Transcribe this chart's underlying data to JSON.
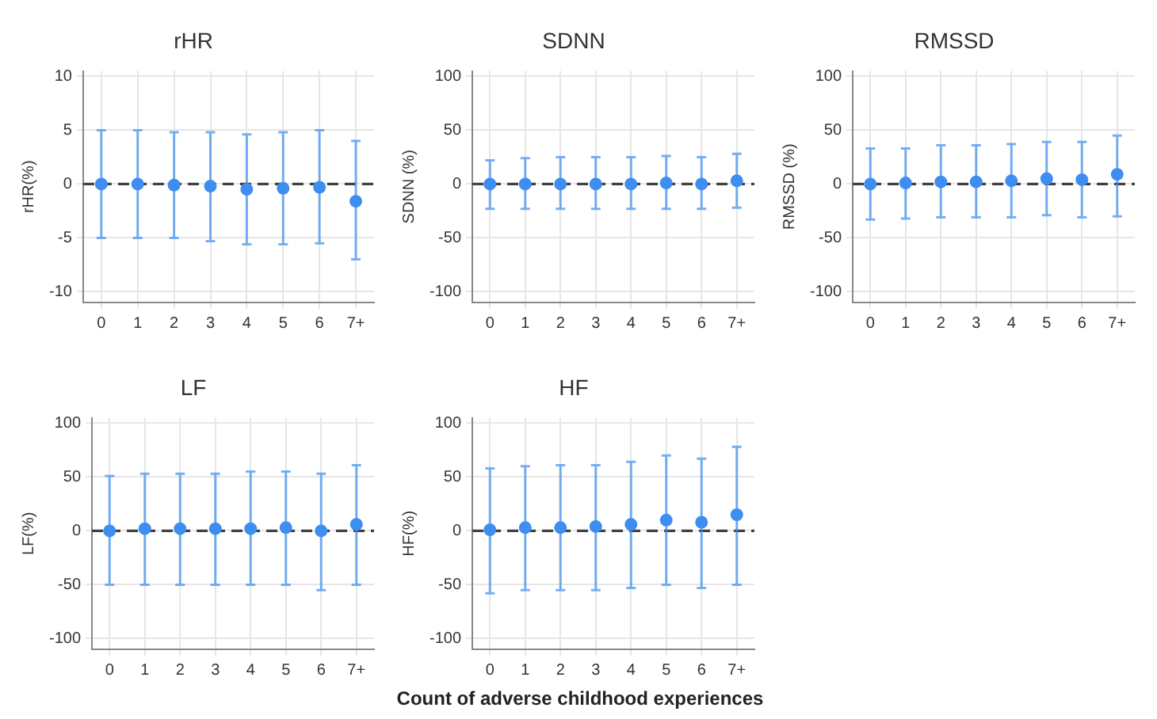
{
  "chart_data": [
    {
      "type": "scatter",
      "title": "rHR",
      "ylabel": "rHR(%)",
      "categories": [
        "0",
        "1",
        "2",
        "3",
        "4",
        "5",
        "6",
        "7+"
      ],
      "series": [
        {
          "color": "#3d8ef0",
          "values": [
            0,
            0,
            -0.1,
            -0.2,
            -0.5,
            -0.4,
            -0.3,
            -1.6
          ],
          "errors": [
            [
              -5,
              5
            ],
            [
              -5,
              5
            ],
            [
              -5,
              4.8
            ],
            [
              -5.3,
              4.8
            ],
            [
              -5.6,
              4.6
            ],
            [
              -5.6,
              4.8
            ],
            [
              -5.5,
              5
            ],
            [
              -7,
              4
            ]
          ]
        }
      ],
      "ylim": [
        -11,
        10.5
      ],
      "yticks": [
        -10,
        -5,
        0,
        5,
        10
      ],
      "grid": true,
      "marker": "circle",
      "ref_lines": [
        {
          "axis": "y",
          "value": 0,
          "color": "#404040",
          "line_style": "dashed"
        }
      ]
    },
    {
      "type": "scatter",
      "title": "SDNN",
      "ylabel": "SDNN (%)",
      "categories": [
        "0",
        "1",
        "2",
        "3",
        "4",
        "5",
        "6",
        "7+"
      ],
      "series": [
        {
          "color": "#3d8ef0",
          "values": [
            0,
            0,
            0,
            0,
            0,
            1,
            0,
            3
          ],
          "errors": [
            [
              -23,
              22
            ],
            [
              -23,
              24
            ],
            [
              -23,
              25
            ],
            [
              -23,
              25
            ],
            [
              -23,
              25
            ],
            [
              -23,
              26
            ],
            [
              -23,
              25
            ],
            [
              -22,
              28
            ]
          ]
        }
      ],
      "ylim": [
        -110,
        105
      ],
      "yticks": [
        -100,
        -50,
        0,
        50,
        100
      ],
      "grid": true,
      "marker": "circle",
      "ref_lines": [
        {
          "axis": "y",
          "value": 0,
          "color": "#404040",
          "line_style": "dashed"
        }
      ]
    },
    {
      "type": "scatter",
      "title": "RMSSD",
      "ylabel": "RMSSD (%)",
      "categories": [
        "0",
        "1",
        "2",
        "3",
        "4",
        "5",
        "6",
        "7+"
      ],
      "series": [
        {
          "color": "#3d8ef0",
          "values": [
            0,
            1,
            2,
            2,
            3,
            5,
            4,
            9
          ],
          "errors": [
            [
              -33,
              33
            ],
            [
              -32,
              33
            ],
            [
              -31,
              36
            ],
            [
              -31,
              36
            ],
            [
              -31,
              37
            ],
            [
              -29,
              39
            ],
            [
              -31,
              39
            ],
            [
              -30,
              45
            ]
          ]
        }
      ],
      "ylim": [
        -110,
        105
      ],
      "yticks": [
        -100,
        -50,
        0,
        50,
        100
      ],
      "grid": true,
      "marker": "circle",
      "ref_lines": [
        {
          "axis": "y",
          "value": 0,
          "color": "#404040",
          "line_style": "dashed"
        }
      ]
    },
    {
      "type": "scatter",
      "title": "LF",
      "ylabel": "LF(%)",
      "categories": [
        "0",
        "1",
        "2",
        "3",
        "4",
        "5",
        "6",
        "7+"
      ],
      "series": [
        {
          "color": "#3d8ef0",
          "values": [
            0,
            2,
            2,
            2,
            2,
            3,
            0,
            6
          ],
          "errors": [
            [
              -50,
              51
            ],
            [
              -50,
              53
            ],
            [
              -50,
              53
            ],
            [
              -50,
              53
            ],
            [
              -50,
              55
            ],
            [
              -50,
              55
            ],
            [
              -55,
              53
            ],
            [
              -50,
              61
            ]
          ]
        }
      ],
      "ylim": [
        -110,
        105
      ],
      "yticks": [
        -100,
        -50,
        0,
        50,
        100
      ],
      "grid": true,
      "marker": "circle",
      "ref_lines": [
        {
          "axis": "y",
          "value": 0,
          "color": "#404040",
          "line_style": "dashed"
        }
      ]
    },
    {
      "type": "scatter",
      "title": "HF",
      "ylabel": "HF(%)",
      "xlabel": "Count of adverse childhood experiences",
      "categories": [
        "0",
        "1",
        "2",
        "3",
        "4",
        "5",
        "6",
        "7+"
      ],
      "series": [
        {
          "color": "#3d8ef0",
          "values": [
            1,
            3,
            3,
            4,
            6,
            10,
            8,
            15
          ],
          "errors": [
            [
              -58,
              58
            ],
            [
              -55,
              60
            ],
            [
              -55,
              61
            ],
            [
              -55,
              61
            ],
            [
              -53,
              64
            ],
            [
              -50,
              70
            ],
            [
              -53,
              67
            ],
            [
              -50,
              78
            ]
          ]
        }
      ],
      "ylim": [
        -110,
        105
      ],
      "yticks": [
        -100,
        -50,
        0,
        50,
        100
      ],
      "grid": true,
      "marker": "circle",
      "ref_lines": [
        {
          "axis": "y",
          "value": 0,
          "color": "#404040",
          "line_style": "dashed"
        }
      ]
    }
  ]
}
